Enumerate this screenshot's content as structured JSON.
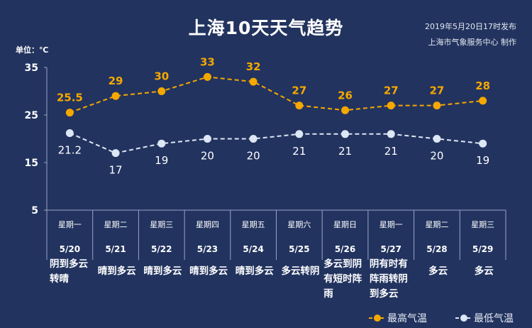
{
  "header": {
    "title": "上海10天天气趋势",
    "published": "2019年5月20日17时发布",
    "producer": "上海市气象服务中心  制作",
    "unit": "单位：℃"
  },
  "colors": {
    "background": "#22335f",
    "high": "#f5a800",
    "low": "#dce6f5",
    "grid": "#9aa6c4"
  },
  "chart_data": {
    "type": "line",
    "title": "上海10天天气趋势",
    "ylabel": "单位：℃",
    "ylim": [
      5,
      35
    ],
    "yticks": [
      "35",
      "25",
      "15",
      "5"
    ],
    "yticks_values": [
      35,
      25,
      15,
      5
    ],
    "weekdays": [
      "星期一",
      "星期二",
      "星期三",
      "星期四",
      "星期五",
      "星期六",
      "星期日",
      "星期一",
      "星期二",
      "星期三"
    ],
    "categories": [
      "5/20",
      "5/21",
      "5/22",
      "5/23",
      "5/24",
      "5/25",
      "5/26",
      "5/27",
      "5/28",
      "5/29"
    ],
    "weather": [
      "阴到多云转晴",
      "晴到多云",
      "晴到多云",
      "晴到多云",
      "晴到多云",
      "多云转阴",
      "多云到阴有短时阵雨",
      "阴有时有阵雨转阴到多云",
      "多云",
      "多云"
    ],
    "series": [
      {
        "name": "最高气温",
        "values": [
          25.5,
          29,
          30,
          33,
          32,
          27,
          26,
          27,
          27,
          28
        ],
        "labels": [
          "25.5",
          "29",
          "30",
          "33",
          "32",
          "27",
          "26",
          "27",
          "27",
          "28"
        ]
      },
      {
        "name": "最低气温",
        "values": [
          21.2,
          17,
          19,
          20,
          20,
          21,
          21,
          21,
          20,
          19
        ],
        "labels": [
          "21.2",
          "17",
          "19",
          "20",
          "20",
          "21",
          "21",
          "21",
          "20",
          "19"
        ]
      }
    ],
    "legend": "bottom-right"
  }
}
